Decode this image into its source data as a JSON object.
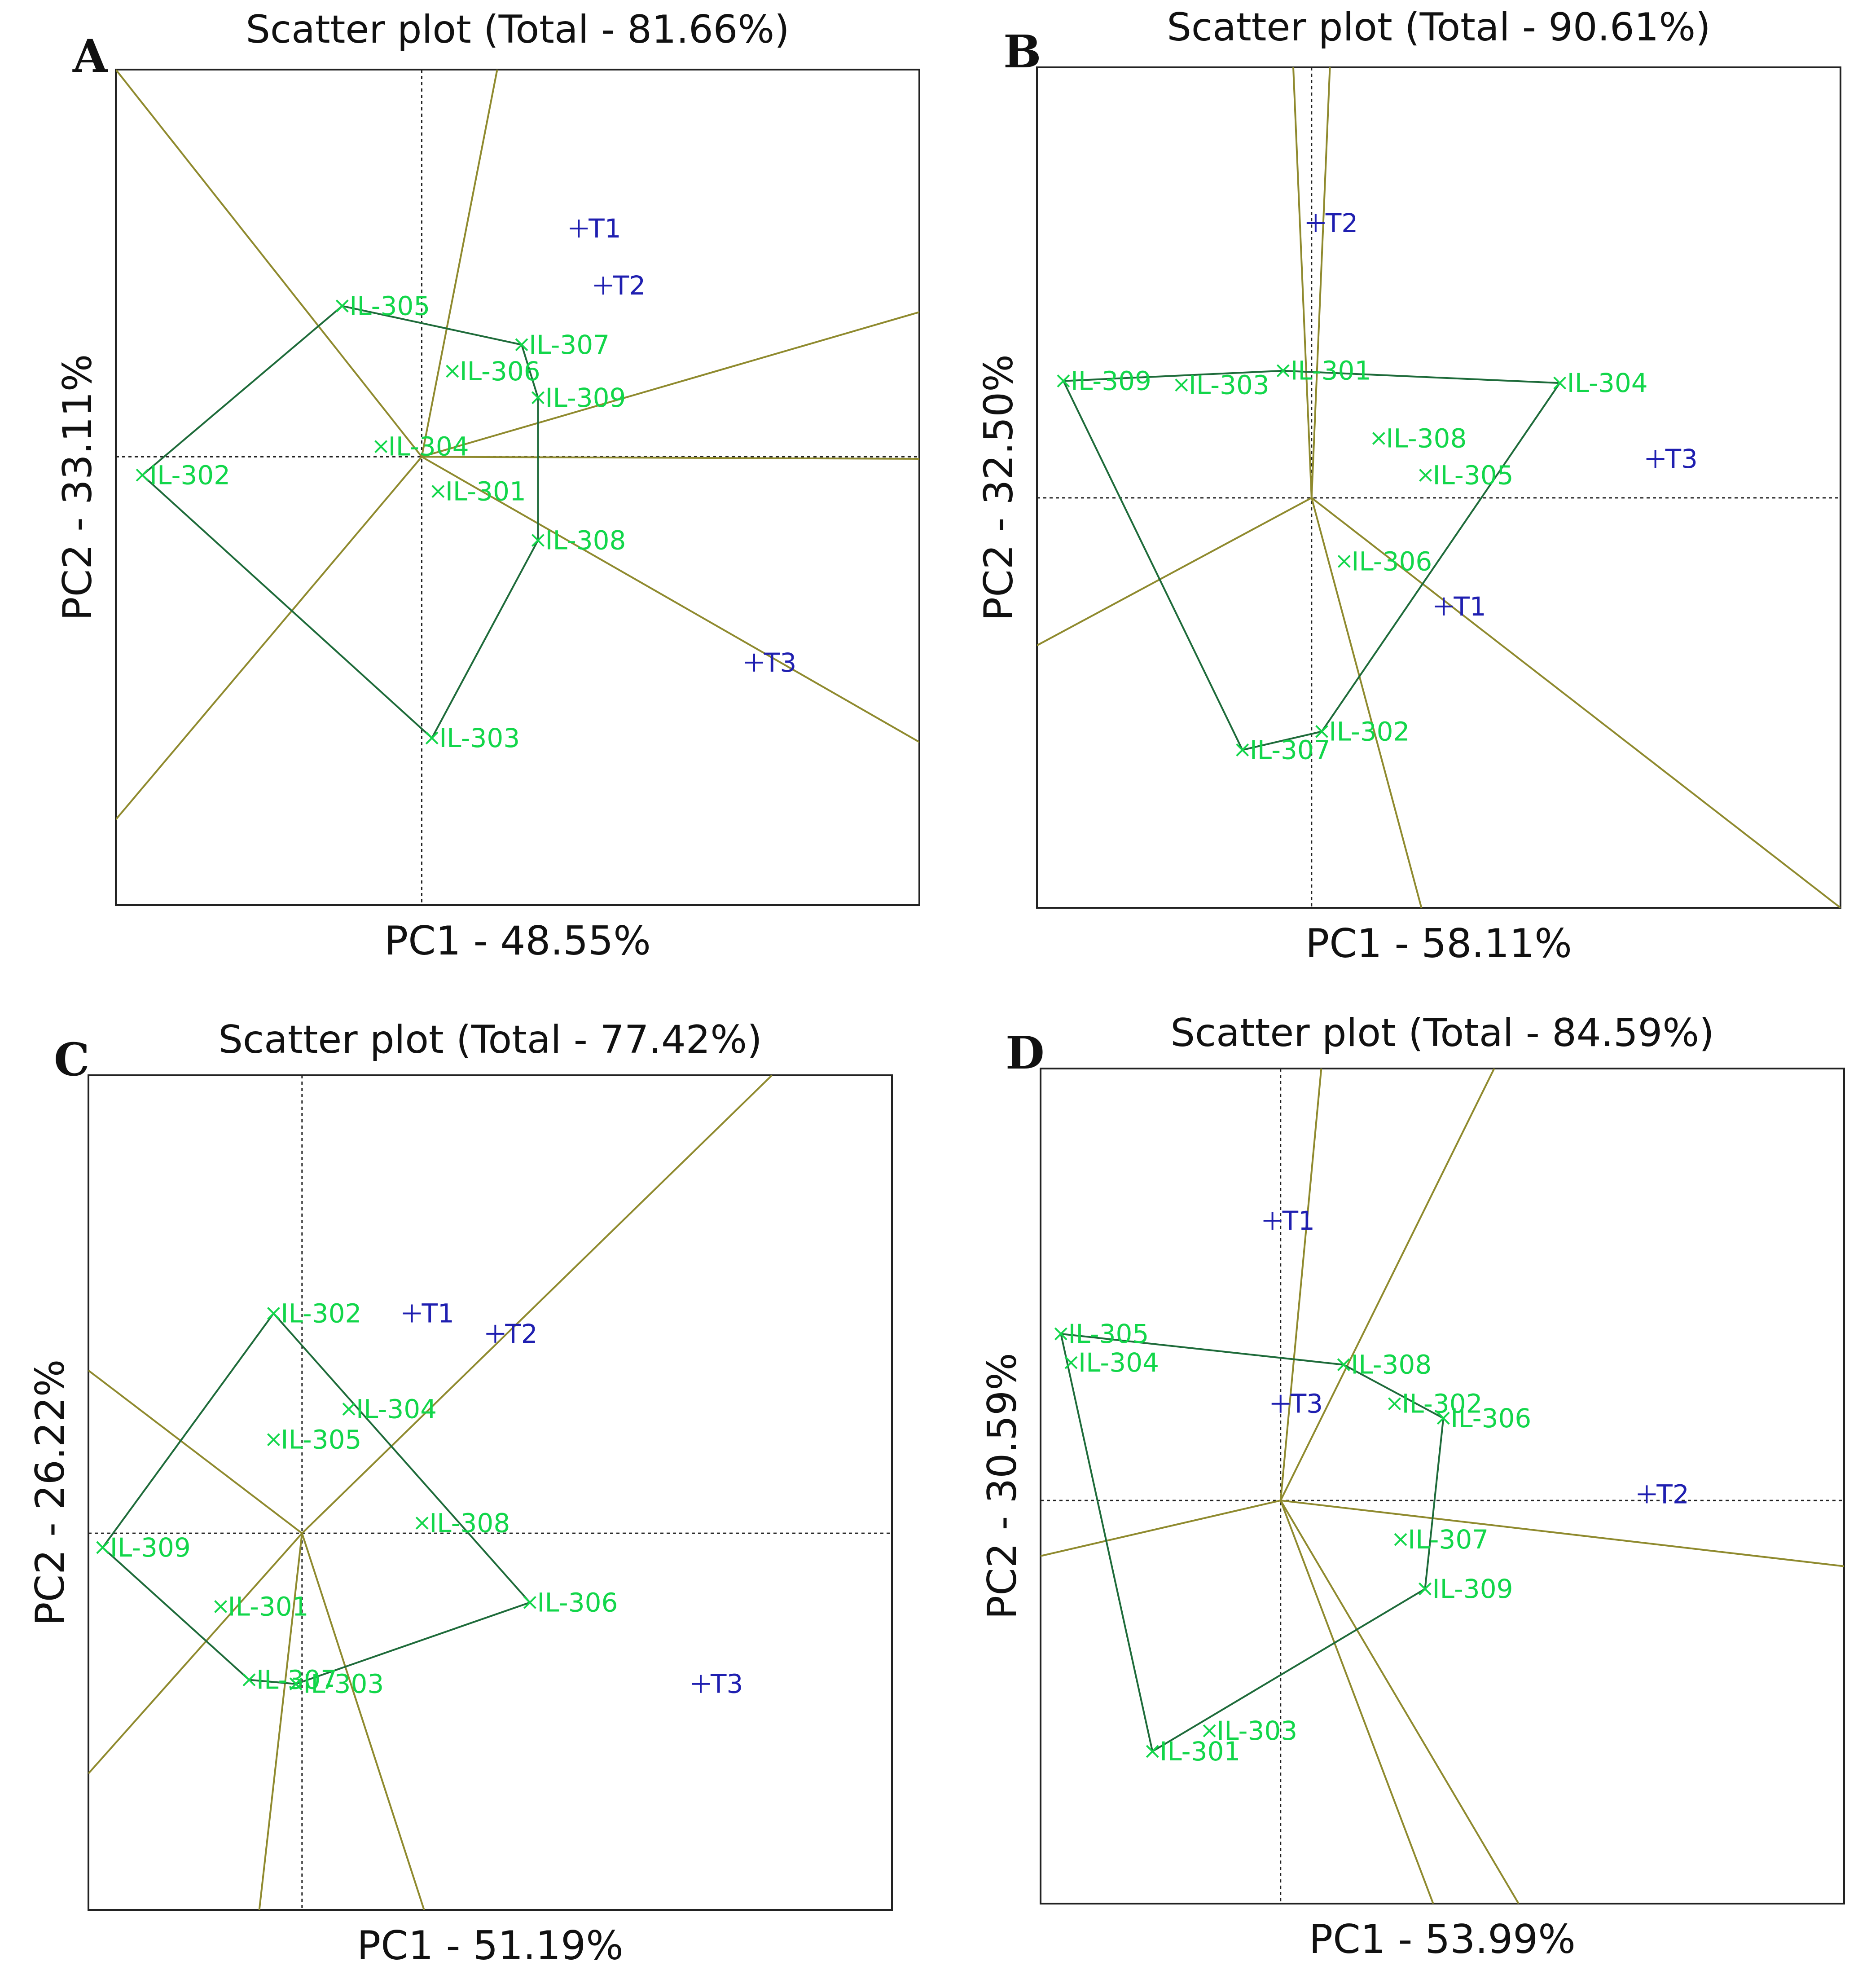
{
  "chart_data": [
    {
      "type": "scatter",
      "panel_label": "A",
      "title": "Scatter plot (Total - 81.66%)",
      "xlabel": "PC1 - 48.55%",
      "ylabel": "PC2 - 33.11%",
      "xlim": [
        -1.5,
        2.44
      ],
      "ylim": [
        -2.2,
        1.9
      ],
      "origin": [
        0,
        0
      ],
      "genotypes": [
        {
          "label": "IL-305",
          "x": -0.39,
          "y": 0.74
        },
        {
          "label": "IL-307",
          "x": 0.49,
          "y": 0.55
        },
        {
          "label": "IL-306",
          "x": 0.15,
          "y": 0.42
        },
        {
          "label": "IL-309",
          "x": 0.57,
          "y": 0.29
        },
        {
          "label": "IL-304",
          "x": -0.2,
          "y": 0.05
        },
        {
          "label": "IL-302",
          "x": -1.37,
          "y": -0.09
        },
        {
          "label": "IL-301",
          "x": 0.08,
          "y": -0.17
        },
        {
          "label": "IL-308",
          "x": 0.57,
          "y": -0.41
        },
        {
          "label": "IL-303",
          "x": 0.05,
          "y": -1.38
        }
      ],
      "environments": [
        {
          "label": "T1",
          "x": 0.77,
          "y": 1.12
        },
        {
          "label": "T2",
          "x": 0.89,
          "y": 0.84
        },
        {
          "label": "T3",
          "x": 1.63,
          "y": -1.01
        }
      ],
      "polygon": [
        "IL-305",
        "IL-307",
        "IL-309",
        "IL-308",
        "IL-303",
        "IL-302"
      ],
      "sector_lines": [
        [
          -1.5,
          1.9
        ],
        [
          0.37,
          1.9
        ],
        [
          2.44,
          0.71
        ],
        [
          2.44,
          -0.01
        ],
        [
          2.44,
          -1.4
        ],
        [
          -1.5,
          -1.78
        ]
      ]
    },
    {
      "type": "scatter",
      "panel_label": "B",
      "title": "Scatter plot (Total - 90.61%)",
      "xlabel": "PC1 - 58.11%",
      "ylabel": "PC2 - 32.50%",
      "xlim": [
        -1.35,
        2.6
      ],
      "ylim": [
        -2.0,
        2.1
      ],
      "origin": [
        0,
        0
      ],
      "genotypes": [
        {
          "label": "IL-309",
          "x": -1.22,
          "y": 0.57
        },
        {
          "label": "IL-303",
          "x": -0.64,
          "y": 0.55
        },
        {
          "label": "IL-301",
          "x": -0.14,
          "y": 0.62
        },
        {
          "label": "IL-304",
          "x": 1.22,
          "y": 0.56
        },
        {
          "label": "IL-308",
          "x": 0.33,
          "y": 0.29
        },
        {
          "label": "IL-305",
          "x": 0.56,
          "y": 0.11
        },
        {
          "label": "IL-306",
          "x": 0.16,
          "y": -0.31
        },
        {
          "label": "IL-302",
          "x": 0.05,
          "y": -1.14
        },
        {
          "label": "IL-307",
          "x": -0.34,
          "y": -1.23
        }
      ],
      "environments": [
        {
          "label": "T2",
          "x": 0.02,
          "y": 1.34
        },
        {
          "label": "T3",
          "x": 1.69,
          "y": 0.19
        },
        {
          "label": "T1",
          "x": 0.65,
          "y": -0.53
        }
      ],
      "polygon": [
        "IL-309",
        "IL-301",
        "IL-304",
        "IL-302",
        "IL-307"
      ],
      "sector_lines": [
        [
          -0.09,
          2.1
        ],
        [
          0.09,
          2.1
        ],
        [
          -1.35,
          -0.72
        ],
        [
          0.54,
          -2.0
        ],
        [
          2.6,
          -2.0
        ]
      ]
    },
    {
      "type": "scatter",
      "panel_label": "C",
      "title": "Scatter plot (Total - 77.42%)",
      "xlabel": "PC1 - 51.19%",
      "ylabel": "PC2 - 26.22%",
      "xlim": [
        -1.05,
        2.9
      ],
      "ylim": [
        -1.85,
        2.25
      ],
      "origin": [
        0,
        0
      ],
      "genotypes": [
        {
          "label": "IL-302",
          "x": -0.14,
          "y": 1.08
        },
        {
          "label": "IL-304",
          "x": 0.23,
          "y": 0.61
        },
        {
          "label": "IL-305",
          "x": -0.14,
          "y": 0.46
        },
        {
          "label": "IL-308",
          "x": 0.59,
          "y": 0.05
        },
        {
          "label": "IL-309",
          "x": -0.98,
          "y": -0.07
        },
        {
          "label": "IL-306",
          "x": 1.12,
          "y": -0.34
        },
        {
          "label": "IL-301",
          "x": -0.4,
          "y": -0.36
        },
        {
          "label": "IL-307",
          "x": -0.26,
          "y": -0.72
        },
        {
          "label": "IL-303",
          "x": -0.03,
          "y": -0.74
        }
      ],
      "environments": [
        {
          "label": "T1",
          "x": 0.54,
          "y": 1.08
        },
        {
          "label": "T2",
          "x": 0.95,
          "y": 0.98
        },
        {
          "label": "T3",
          "x": 1.96,
          "y": -0.74
        }
      ],
      "polygon": [
        "IL-302",
        "IL-306",
        "IL-303",
        "IL-307",
        "IL-309"
      ],
      "sector_lines": [
        [
          2.31,
          2.25
        ],
        [
          -1.05,
          0.8
        ],
        [
          -1.05,
          -1.18
        ],
        [
          -0.21,
          -1.85
        ],
        [
          0.6,
          -1.85
        ]
      ]
    },
    {
      "type": "scatter",
      "panel_label": "D",
      "title": "Scatter plot (Total - 84.59%)",
      "xlabel": "PC1 - 53.99%",
      "ylabel": "PC2 - 30.59%",
      "xlim": [
        -1.18,
        2.77
      ],
      "ylim": [
        -1.96,
        2.1
      ],
      "origin": [
        0,
        0
      ],
      "genotypes": [
        {
          "label": "IL-305",
          "x": -1.08,
          "y": 0.81
        },
        {
          "label": "IL-304",
          "x": -1.03,
          "y": 0.67
        },
        {
          "label": "IL-308",
          "x": 0.31,
          "y": 0.66
        },
        {
          "label": "IL-302",
          "x": 0.56,
          "y": 0.47
        },
        {
          "label": "IL-306",
          "x": 0.8,
          "y": 0.4
        },
        {
          "label": "IL-307",
          "x": 0.59,
          "y": -0.19
        },
        {
          "label": "IL-309",
          "x": 0.71,
          "y": -0.43
        },
        {
          "label": "IL-303",
          "x": -0.35,
          "y": -1.12
        },
        {
          "label": "IL-301",
          "x": -0.63,
          "y": -1.22
        }
      ],
      "environments": [
        {
          "label": "T1",
          "x": -0.04,
          "y": 1.36
        },
        {
          "label": "T3",
          "x": 0.0,
          "y": 0.47
        },
        {
          "label": "T2",
          "x": 1.8,
          "y": 0.03
        }
      ],
      "polygon": [
        "IL-305",
        "IL-308",
        "IL-306",
        "IL-309",
        "IL-301"
      ],
      "sector_lines": [
        [
          0.2,
          2.1
        ],
        [
          1.05,
          2.1
        ],
        [
          2.77,
          -0.32
        ],
        [
          1.17,
          -1.96
        ],
        [
          0.75,
          -1.96
        ],
        [
          -1.18,
          -0.27
        ]
      ]
    }
  ]
}
